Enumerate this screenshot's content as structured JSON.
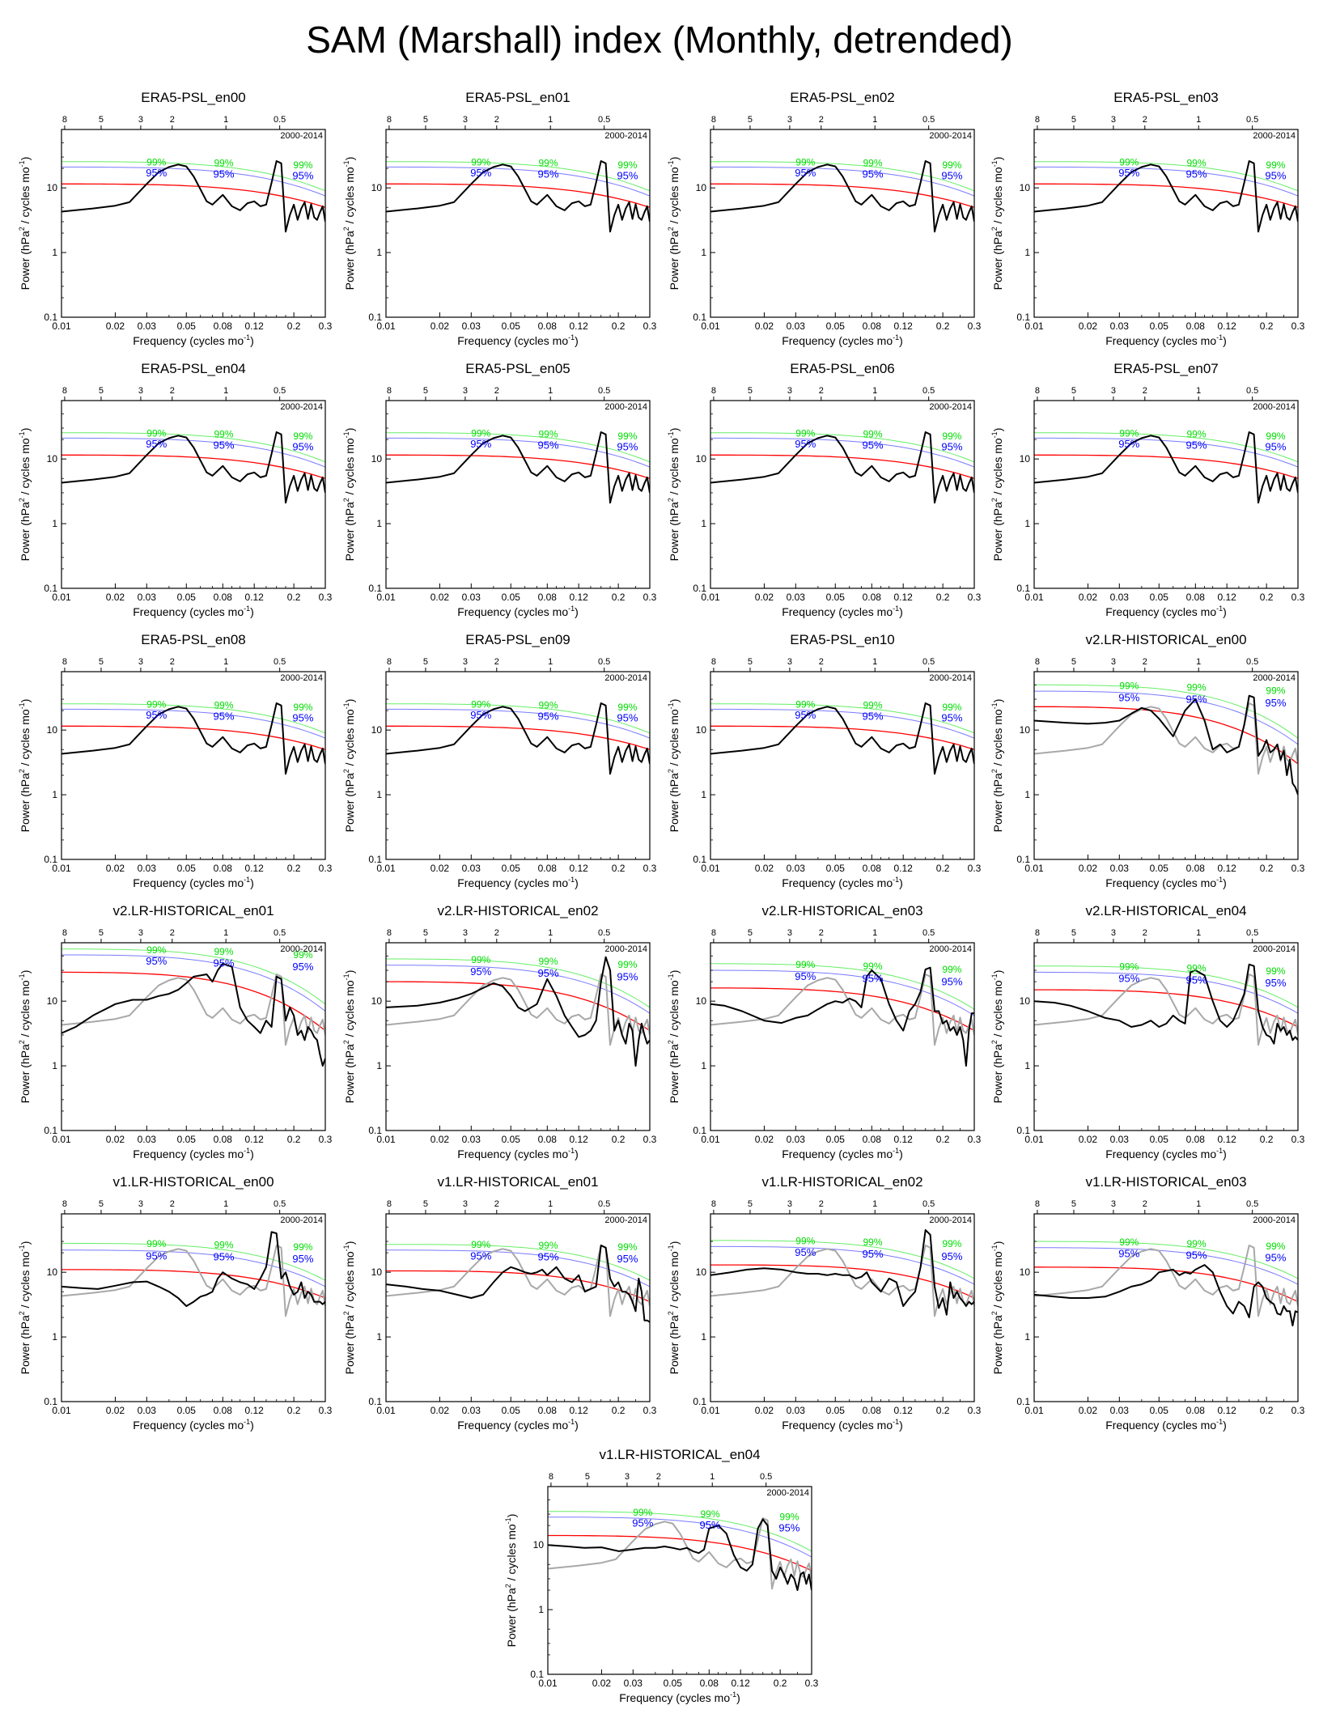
{
  "title": "SAM (Marshall) index (Monthly, detrended)",
  "chart_data": {
    "type": "line",
    "x_scale": "log",
    "y_scale": "log",
    "xlabel": "Frequency (cycles mo",
    "xlabel_sup": "-1",
    "ylabel": "Power (hPa",
    "ylabel_sup": "2",
    "ylabel_mid": " / cycles mo",
    "ylabel_sup2": "-1",
    "xlim": [
      0.01,
      0.3
    ],
    "ylim": [
      0.1,
      80
    ],
    "x_ticks": [
      0.01,
      0.02,
      0.03,
      0.05,
      0.08,
      0.12,
      0.2,
      0.3
    ],
    "x_tick_labels": [
      "0.01",
      "0.02",
      "0.03",
      "0.05",
      "0.08",
      "0.12",
      "0.2",
      "0.3"
    ],
    "y_ticks": [
      0.1,
      1,
      10
    ],
    "y_tick_labels": [
      "0.1",
      "1",
      "10"
    ],
    "top_axis_period_years": [
      8,
      5,
      3,
      2,
      1,
      0.5
    ],
    "top_axis_labels": [
      "8",
      "5",
      "3",
      "2",
      "1",
      "0.5"
    ],
    "period_text": "2000-2014",
    "confidence_labels": [
      "99%",
      "95%"
    ],
    "colors": {
      "spectrum": "#000000",
      "reference": "#a8a8a8",
      "red_noise": "#ff0000",
      "ci95": "#0000ff",
      "ci99": "#00dd00",
      "ci95_line": "#7a7aff",
      "ci99_line": "#66ee66"
    },
    "reference_spectrum": {
      "name": "ERA5-PSL",
      "x": [
        0.01,
        0.015,
        0.02,
        0.024,
        0.03,
        0.035,
        0.04,
        0.045,
        0.05,
        0.055,
        0.06,
        0.065,
        0.07,
        0.08,
        0.09,
        0.1,
        0.11,
        0.12,
        0.13,
        0.14,
        0.15,
        0.16,
        0.17,
        0.18,
        0.19,
        0.2,
        0.21,
        0.22,
        0.23,
        0.24,
        0.25,
        0.26,
        0.27,
        0.28,
        0.29,
        0.3
      ],
      "y": [
        4.3,
        4.8,
        5.3,
        6.0,
        11.5,
        17.5,
        21.0,
        23.0,
        21.5,
        15.0,
        9.5,
        6.2,
        5.5,
        7.8,
        5.2,
        4.5,
        5.8,
        6.2,
        5.2,
        5.5,
        12.0,
        26.0,
        24.0,
        2.1,
        3.8,
        5.5,
        3.2,
        4.8,
        6.0,
        3.3,
        5.6,
        3.5,
        3.2,
        4.2,
        5.2,
        3.0
      ]
    },
    "panels": [
      {
        "title": "ERA5-PSL_en00",
        "kind": "ref"
      },
      {
        "title": "ERA5-PSL_en01",
        "kind": "ref"
      },
      {
        "title": "ERA5-PSL_en02",
        "kind": "ref"
      },
      {
        "title": "ERA5-PSL_en03",
        "kind": "ref"
      },
      {
        "title": "ERA5-PSL_en04",
        "kind": "ref"
      },
      {
        "title": "ERA5-PSL_en05",
        "kind": "ref"
      },
      {
        "title": "ERA5-PSL_en06",
        "kind": "ref"
      },
      {
        "title": "ERA5-PSL_en07",
        "kind": "ref"
      },
      {
        "title": "ERA5-PSL_en08",
        "kind": "ref"
      },
      {
        "title": "ERA5-PSL_en09",
        "kind": "ref"
      },
      {
        "title": "ERA5-PSL_en10",
        "kind": "ref"
      },
      {
        "title": "v2.LR-HISTORICAL_en00",
        "kind": "model",
        "red_noise": [
          23,
          18,
          3.0
        ],
        "ci95": [
          40,
          33,
          6.0
        ],
        "ci99": [
          50,
          42,
          7.5
        ],
        "x": [
          0.01,
          0.015,
          0.02,
          0.025,
          0.03,
          0.035,
          0.04,
          0.045,
          0.05,
          0.06,
          0.07,
          0.08,
          0.09,
          0.1,
          0.11,
          0.12,
          0.13,
          0.14,
          0.15,
          0.16,
          0.17,
          0.18,
          0.19,
          0.2,
          0.21,
          0.22,
          0.23,
          0.24,
          0.25,
          0.26,
          0.27,
          0.28,
          0.29,
          0.3
        ],
        "y": [
          14,
          13,
          12.5,
          13,
          14,
          18,
          22,
          20,
          15,
          8,
          20,
          30,
          14,
          5,
          6,
          4.5,
          5,
          5.5,
          12,
          34,
          32,
          4,
          5,
          7,
          4.5,
          5,
          6,
          3.5,
          4.8,
          2,
          3.5,
          1.5,
          1.3,
          1.0
        ]
      },
      {
        "title": "v2.LR-HISTORICAL_en01",
        "kind": "model",
        "red_noise": [
          28,
          22,
          3.5
        ],
        "ci95": [
          52,
          43,
          7.0
        ],
        "ci99": [
          64,
          54,
          9.0
        ],
        "x": [
          0.01,
          0.012,
          0.015,
          0.02,
          0.025,
          0.03,
          0.035,
          0.04,
          0.045,
          0.05,
          0.055,
          0.06,
          0.065,
          0.07,
          0.075,
          0.08,
          0.09,
          0.1,
          0.11,
          0.12,
          0.13,
          0.14,
          0.15,
          0.16,
          0.17,
          0.18,
          0.19,
          0.2,
          0.21,
          0.22,
          0.23,
          0.24,
          0.25,
          0.26,
          0.27,
          0.28,
          0.29,
          0.3
        ],
        "y": [
          3.2,
          4,
          6,
          9,
          10.5,
          10.5,
          12,
          13,
          15,
          19,
          24,
          25,
          26,
          20,
          30,
          38,
          34,
          8,
          5,
          4,
          3.2,
          5,
          4,
          24,
          22,
          5,
          8,
          6,
          3,
          3.5,
          2.5,
          4,
          3.5,
          2.8,
          2.5,
          1.5,
          1.0,
          1.3
        ]
      },
      {
        "title": "v2.LR-HISTORICAL_en02",
        "kind": "model",
        "red_noise": [
          20,
          16,
          3.5
        ],
        "ci95": [
          36,
          30,
          6.5
        ],
        "ci99": [
          45,
          38,
          8.0
        ],
        "x": [
          0.01,
          0.015,
          0.02,
          0.025,
          0.03,
          0.035,
          0.04,
          0.045,
          0.05,
          0.055,
          0.06,
          0.07,
          0.08,
          0.09,
          0.1,
          0.11,
          0.12,
          0.13,
          0.14,
          0.15,
          0.16,
          0.17,
          0.18,
          0.19,
          0.2,
          0.21,
          0.22,
          0.23,
          0.24,
          0.25,
          0.26,
          0.27,
          0.28,
          0.29,
          0.3
        ],
        "y": [
          8,
          8.5,
          9.5,
          11,
          13,
          16,
          19,
          17,
          12,
          8,
          7,
          9,
          22,
          12,
          6,
          4,
          2.8,
          3,
          3.5,
          5,
          20,
          48,
          30,
          3.5,
          5,
          3,
          2.2,
          4.5,
          3.5,
          1.0,
          2.5,
          4.5,
          3,
          2.2,
          2.5
        ]
      },
      {
        "title": "v2.LR-HISTORICAL_en03",
        "kind": "model",
        "red_noise": [
          16,
          13,
          3.5
        ],
        "ci95": [
          30,
          25,
          6.0
        ],
        "ci99": [
          38,
          32,
          7.5
        ],
        "x": [
          0.01,
          0.012,
          0.015,
          0.02,
          0.025,
          0.03,
          0.035,
          0.04,
          0.045,
          0.05,
          0.055,
          0.06,
          0.065,
          0.07,
          0.075,
          0.08,
          0.09,
          0.1,
          0.11,
          0.12,
          0.13,
          0.14,
          0.15,
          0.16,
          0.17,
          0.18,
          0.19,
          0.2,
          0.21,
          0.22,
          0.23,
          0.24,
          0.25,
          0.26,
          0.27,
          0.28,
          0.29,
          0.3
        ],
        "y": [
          9,
          8.5,
          7,
          5,
          4.6,
          5.5,
          6,
          7.5,
          9,
          10,
          9.5,
          11,
          10,
          8,
          24,
          30,
          22,
          9,
          5,
          3.5,
          7,
          9,
          14,
          31,
          33,
          7,
          7,
          4.5,
          5,
          3.5,
          4,
          3,
          4,
          2.5,
          1.0,
          3.5,
          6.5,
          6.5
        ]
      },
      {
        "title": "v2.LR-HISTORICAL_en04",
        "kind": "model",
        "red_noise": [
          15,
          13,
          4.0
        ],
        "ci95": [
          28,
          24,
          6.5
        ],
        "ci99": [
          35,
          30,
          8.0
        ],
        "x": [
          0.01,
          0.013,
          0.016,
          0.02,
          0.025,
          0.03,
          0.035,
          0.04,
          0.045,
          0.05,
          0.055,
          0.06,
          0.065,
          0.07,
          0.075,
          0.08,
          0.09,
          0.1,
          0.11,
          0.12,
          0.13,
          0.14,
          0.15,
          0.16,
          0.17,
          0.18,
          0.19,
          0.2,
          0.21,
          0.22,
          0.23,
          0.24,
          0.25,
          0.26,
          0.27,
          0.28,
          0.29,
          0.3
        ],
        "y": [
          10,
          9.5,
          8.5,
          7,
          5.5,
          5,
          4,
          4.3,
          5,
          4,
          4.5,
          6,
          5,
          4.5,
          28,
          30,
          25,
          10,
          5,
          4,
          5,
          8,
          13,
          37,
          35,
          7,
          4,
          3,
          2.8,
          2.2,
          4.5,
          3.5,
          4,
          3,
          3.5,
          2.5,
          2.8,
          2.5
        ]
      },
      {
        "title": "v1.LR-HISTORICAL_en00",
        "kind": "model",
        "red_noise": [
          11,
          10,
          4.0
        ],
        "ci95": [
          22,
          20,
          6.0
        ],
        "ci99": [
          28,
          25,
          7.5
        ],
        "x": [
          0.01,
          0.013,
          0.016,
          0.02,
          0.025,
          0.03,
          0.035,
          0.04,
          0.045,
          0.05,
          0.055,
          0.06,
          0.065,
          0.07,
          0.075,
          0.08,
          0.09,
          0.1,
          0.11,
          0.12,
          0.13,
          0.14,
          0.15,
          0.16,
          0.17,
          0.18,
          0.19,
          0.2,
          0.21,
          0.22,
          0.23,
          0.24,
          0.25,
          0.26,
          0.27,
          0.28,
          0.29,
          0.3
        ],
        "y": [
          6,
          5.7,
          5.5,
          6.2,
          7,
          7.2,
          6,
          5,
          4,
          3,
          3.5,
          4.2,
          4.5,
          5,
          8,
          10,
          8,
          7,
          6.5,
          5.5,
          8,
          12,
          42,
          40,
          8,
          10,
          6,
          4.5,
          5,
          7,
          4,
          5,
          4.5,
          3.5,
          3.5,
          3.5,
          3.2,
          3.5
        ]
      },
      {
        "title": "v1.LR-HISTORICAL_en01",
        "kind": "model",
        "red_noise": [
          10.5,
          10,
          3.5
        ],
        "ci95": [
          22,
          20,
          6.0
        ],
        "ci99": [
          27,
          25,
          7.5
        ],
        "x": [
          0.01,
          0.013,
          0.016,
          0.02,
          0.025,
          0.03,
          0.035,
          0.04,
          0.045,
          0.05,
          0.055,
          0.06,
          0.065,
          0.07,
          0.075,
          0.08,
          0.09,
          0.1,
          0.11,
          0.12,
          0.13,
          0.14,
          0.15,
          0.16,
          0.17,
          0.18,
          0.19,
          0.2,
          0.21,
          0.22,
          0.23,
          0.24,
          0.25,
          0.26,
          0.27,
          0.28,
          0.29,
          0.3
        ],
        "y": [
          6.5,
          6,
          5.5,
          5.2,
          4.5,
          4,
          4.5,
          7,
          10,
          12,
          11,
          10,
          9.5,
          10,
          11,
          9,
          12,
          8,
          7,
          9,
          5,
          5.5,
          6,
          26,
          24,
          8,
          6,
          7,
          5,
          5,
          4.5,
          3.5,
          2.5,
          8,
          5,
          1.8,
          1.8,
          1.7
        ]
      },
      {
        "title": "v1.LR-HISTORICAL_en02",
        "kind": "model",
        "red_noise": [
          13,
          12,
          4.0
        ],
        "ci95": [
          25,
          22,
          6.5
        ],
        "ci99": [
          31,
          28,
          8.0
        ],
        "x": [
          0.01,
          0.013,
          0.016,
          0.02,
          0.025,
          0.03,
          0.035,
          0.04,
          0.045,
          0.05,
          0.055,
          0.06,
          0.065,
          0.07,
          0.075,
          0.08,
          0.09,
          0.1,
          0.11,
          0.12,
          0.13,
          0.14,
          0.15,
          0.16,
          0.17,
          0.18,
          0.19,
          0.2,
          0.21,
          0.22,
          0.23,
          0.24,
          0.25,
          0.26,
          0.27,
          0.28,
          0.29,
          0.3
        ],
        "y": [
          9,
          10,
          11,
          11.5,
          11,
          10,
          9.5,
          9.5,
          9,
          9.5,
          9,
          9,
          8,
          8.5,
          10,
          7,
          5,
          8,
          7,
          3,
          4,
          5,
          12,
          45,
          38,
          6,
          2.8,
          4,
          2.2,
          7,
          4,
          5,
          4,
          3.5,
          3,
          3.5,
          3.2,
          3.5
        ]
      },
      {
        "title": "v1.LR-HISTORICAL_en03",
        "kind": "model",
        "red_noise": [
          12,
          11,
          3.5
        ],
        "ci95": [
          24,
          21,
          6.5
        ],
        "ci99": [
          30,
          26,
          8.0
        ],
        "x": [
          0.01,
          0.013,
          0.016,
          0.02,
          0.025,
          0.03,
          0.035,
          0.04,
          0.045,
          0.05,
          0.055,
          0.06,
          0.065,
          0.07,
          0.075,
          0.08,
          0.09,
          0.1,
          0.11,
          0.12,
          0.13,
          0.14,
          0.15,
          0.16,
          0.17,
          0.18,
          0.19,
          0.2,
          0.21,
          0.22,
          0.23,
          0.24,
          0.25,
          0.26,
          0.27,
          0.28,
          0.29,
          0.3
        ],
        "y": [
          4.5,
          4.2,
          4,
          4,
          4.2,
          5,
          6,
          6.5,
          7.5,
          10,
          10.5,
          11,
          9,
          10,
          9.5,
          11,
          13,
          10,
          5,
          3,
          2.3,
          3.5,
          3,
          2,
          6,
          7,
          6,
          4,
          3.5,
          3.2,
          2.3,
          2.2,
          3,
          2.5,
          2.5,
          1.5,
          2.5,
          2.4
        ]
      },
      {
        "title": "v1.LR-HISTORICAL_en04",
        "kind": "model",
        "red_noise": [
          14,
          12,
          4.0
        ],
        "ci95": [
          27,
          23,
          6.5
        ],
        "ci99": [
          33,
          28,
          8.0
        ],
        "x": [
          0.01,
          0.013,
          0.016,
          0.02,
          0.025,
          0.03,
          0.035,
          0.04,
          0.045,
          0.05,
          0.055,
          0.06,
          0.065,
          0.07,
          0.075,
          0.08,
          0.09,
          0.1,
          0.11,
          0.12,
          0.13,
          0.14,
          0.15,
          0.16,
          0.17,
          0.18,
          0.19,
          0.2,
          0.21,
          0.22,
          0.23,
          0.24,
          0.25,
          0.26,
          0.27,
          0.28,
          0.29,
          0.3
        ],
        "y": [
          10,
          9.5,
          9,
          9.2,
          8,
          8.5,
          9,
          9,
          9.5,
          9,
          8.5,
          9,
          8,
          7.5,
          8.5,
          18,
          20,
          15,
          7,
          4.5,
          4,
          5,
          18,
          25,
          20,
          4,
          3,
          4.5,
          3.5,
          2.5,
          3.5,
          3,
          2,
          3.5,
          3.8,
          2.5,
          3.5,
          2.0
        ]
      }
    ]
  }
}
